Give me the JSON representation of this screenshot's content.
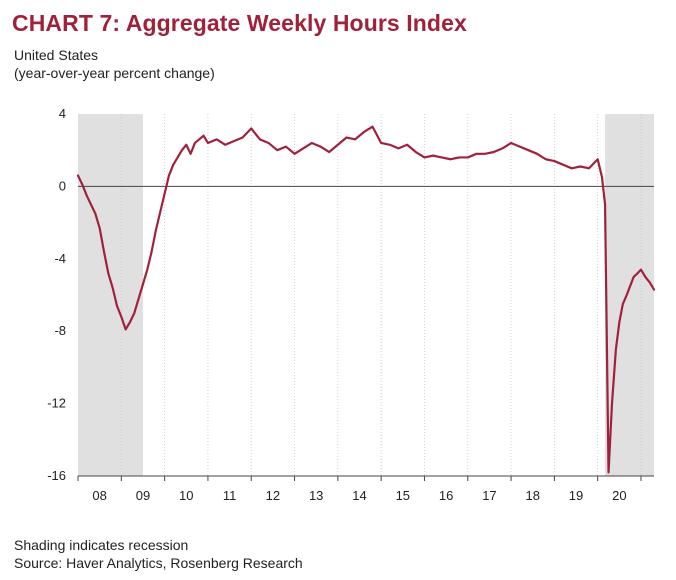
{
  "header": {
    "title": "CHART 7: Aggregate Weekly Hours Index",
    "subtitle_line1": "United States",
    "subtitle_line2": "(year-over-year percent change)"
  },
  "footer": {
    "note": "Shading indicates recession",
    "source": "Source: Haver Analytics, Rosenberg Research"
  },
  "chart_data": {
    "type": "line",
    "title": "CHART 7: Aggregate Weekly Hours Index",
    "ylabel": "",
    "xlabel": "",
    "ylim": [
      -16,
      4
    ],
    "xlim": [
      2008.0,
      2021.3
    ],
    "y_ticks": [
      4,
      0,
      -4,
      -8,
      -12,
      -16
    ],
    "x_tick_labels": [
      "08",
      "09",
      "10",
      "11",
      "12",
      "13",
      "14",
      "15",
      "16",
      "17",
      "18",
      "19",
      "20"
    ],
    "grid": "vertical dashed at year boundaries",
    "line_color": "#a0223a",
    "recession_color": "#e0e0e0",
    "recessions": [
      [
        2008.0,
        2009.5
      ],
      [
        2020.17,
        2021.3
      ]
    ],
    "series": [
      {
        "x": [
          2008.0,
          2008.1,
          2008.2,
          2008.3,
          2008.4,
          2008.5,
          2008.6,
          2008.7,
          2008.8,
          2008.9,
          2009.0,
          2009.1,
          2009.2,
          2009.3,
          2009.4,
          2009.5,
          2009.6,
          2009.7,
          2009.8,
          2009.9,
          2010.0,
          2010.1,
          2010.2,
          2010.3,
          2010.4,
          2010.5,
          2010.6,
          2010.7,
          2010.8,
          2010.9,
          2011.0,
          2011.2,
          2011.4,
          2011.6,
          2011.8,
          2012.0,
          2012.2,
          2012.4,
          2012.6,
          2012.8,
          2013.0,
          2013.2,
          2013.4,
          2013.6,
          2013.8,
          2014.0,
          2014.2,
          2014.4,
          2014.6,
          2014.8,
          2015.0,
          2015.2,
          2015.4,
          2015.6,
          2015.8,
          2016.0,
          2016.2,
          2016.4,
          2016.6,
          2016.8,
          2017.0,
          2017.2,
          2017.4,
          2017.6,
          2017.8,
          2018.0,
          2018.2,
          2018.4,
          2018.6,
          2018.8,
          2019.0,
          2019.2,
          2019.4,
          2019.6,
          2019.8,
          2020.0,
          2020.1,
          2020.17,
          2020.25,
          2020.33,
          2020.42,
          2020.5,
          2020.58,
          2020.67,
          2020.75,
          2020.83,
          2020.92,
          2021.0,
          2021.1,
          2021.2,
          2021.3
        ],
        "y": [
          0.6,
          0.1,
          -0.5,
          -1.0,
          -1.5,
          -2.3,
          -3.6,
          -4.8,
          -5.6,
          -6.6,
          -7.2,
          -7.9,
          -7.5,
          -7.0,
          -6.2,
          -5.4,
          -4.6,
          -3.6,
          -2.4,
          -1.4,
          -0.4,
          0.6,
          1.2,
          1.6,
          2.0,
          2.3,
          1.8,
          2.4,
          2.6,
          2.8,
          2.4,
          2.6,
          2.3,
          2.5,
          2.7,
          3.2,
          2.6,
          2.4,
          2.0,
          2.2,
          1.8,
          2.1,
          2.4,
          2.2,
          1.9,
          2.3,
          2.7,
          2.6,
          3.0,
          3.3,
          2.4,
          2.3,
          2.1,
          2.3,
          1.9,
          1.6,
          1.7,
          1.6,
          1.5,
          1.6,
          1.6,
          1.8,
          1.8,
          1.9,
          2.1,
          2.4,
          2.2,
          2.0,
          1.8,
          1.5,
          1.4,
          1.2,
          1.0,
          1.1,
          1.0,
          1.5,
          0.5,
          -1.0,
          -15.8,
          -12.0,
          -9.0,
          -7.5,
          -6.5,
          -6.0,
          -5.5,
          -5.0,
          -4.8,
          -4.6,
          -5.0,
          -5.3,
          -5.7
        ]
      }
    ]
  }
}
